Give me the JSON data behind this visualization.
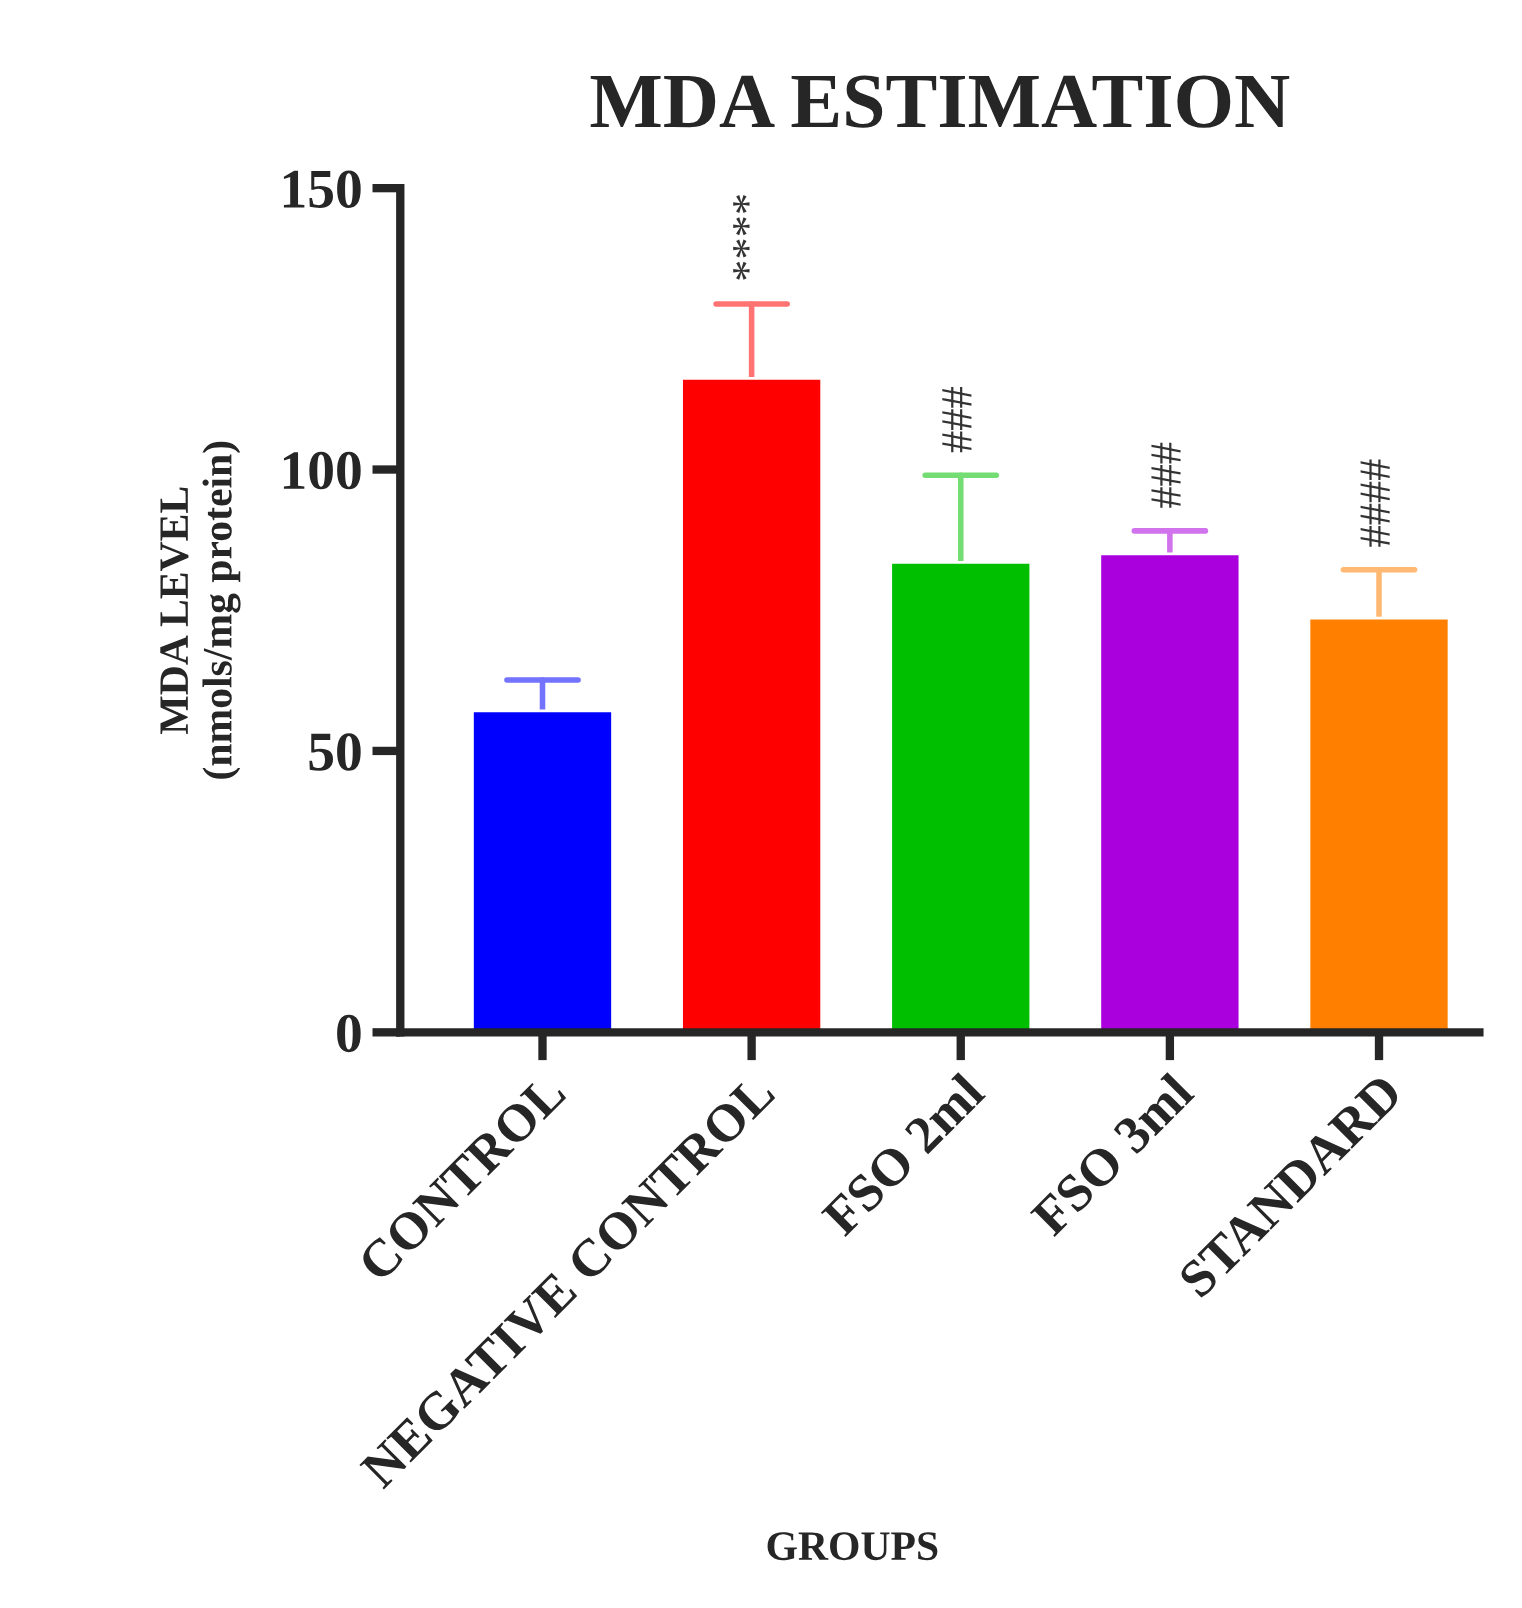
{
  "chart_data": {
    "type": "bar",
    "title": "MDA ESTIMATION",
    "xlabel": "GROUPS",
    "ylabel": "MDA LEVEL\n(nmols/mg protein)",
    "categories": [
      "CONTROL",
      "NEGATIVE CONTROL",
      "FSO 2ml",
      "FSO 3ml",
      "STANDARD"
    ],
    "values": [
      57.1,
      116.2,
      83.5,
      85.0,
      73.6
    ],
    "errors": [
      [
        57.1,
        62.6
      ],
      [
        116.2,
        129.4
      ],
      [
        83.5,
        99.0
      ],
      [
        85.0,
        89.1
      ],
      [
        73.6,
        82.2
      ]
    ],
    "colors": [
      "#0000ff",
      "#ff0000",
      "#00bf00",
      "#aa00dd",
      "#ff8000"
    ],
    "ylim": [
      0,
      150
    ],
    "yticks": [
      0,
      50,
      100,
      150
    ],
    "grid": false,
    "annotations": [
      {
        "text": "****",
        "x": "NEGATIVE CONTROL",
        "y": 129.4
      },
      {
        "text": "###",
        "x": "FSO 2ml",
        "y": 99.0
      },
      {
        "text": "###",
        "x": "FSO 3ml",
        "y": 89.1
      },
      {
        "text": "####",
        "x": "STANDARD",
        "y": 82.2
      }
    ]
  }
}
